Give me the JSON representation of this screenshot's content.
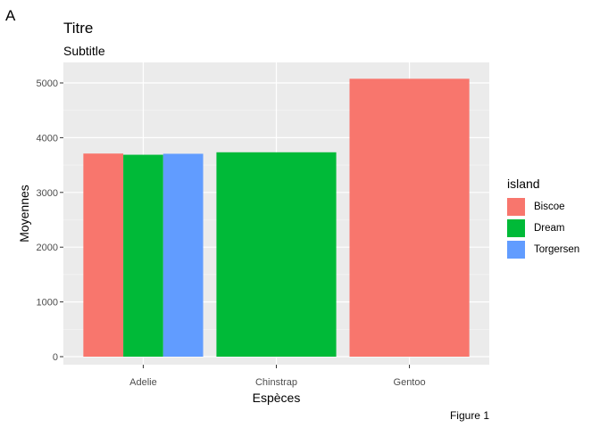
{
  "tag": "A",
  "chart_data": {
    "type": "bar",
    "title": "Titre",
    "subtitle": "Subtitle",
    "caption": "Figure 1",
    "xlabel": "Espèces",
    "ylabel": "Moyennes",
    "legend_title": "island",
    "legend_position": "right",
    "grid": true,
    "categories": [
      "Adelie",
      "Chinstrap",
      "Gentoo"
    ],
    "ylim": [
      0,
      5350
    ],
    "yticks": [
      0,
      1000,
      2000,
      3000,
      4000,
      5000
    ],
    "series": [
      {
        "name": "Biscoe",
        "color": "#F8766D",
        "values": [
          3710,
          null,
          5076
        ]
      },
      {
        "name": "Dream",
        "color": "#00BA38",
        "values": [
          3688,
          3733,
          null
        ]
      },
      {
        "name": "Torgersen",
        "color": "#619CFF",
        "values": [
          3706,
          null,
          null
        ]
      }
    ]
  }
}
